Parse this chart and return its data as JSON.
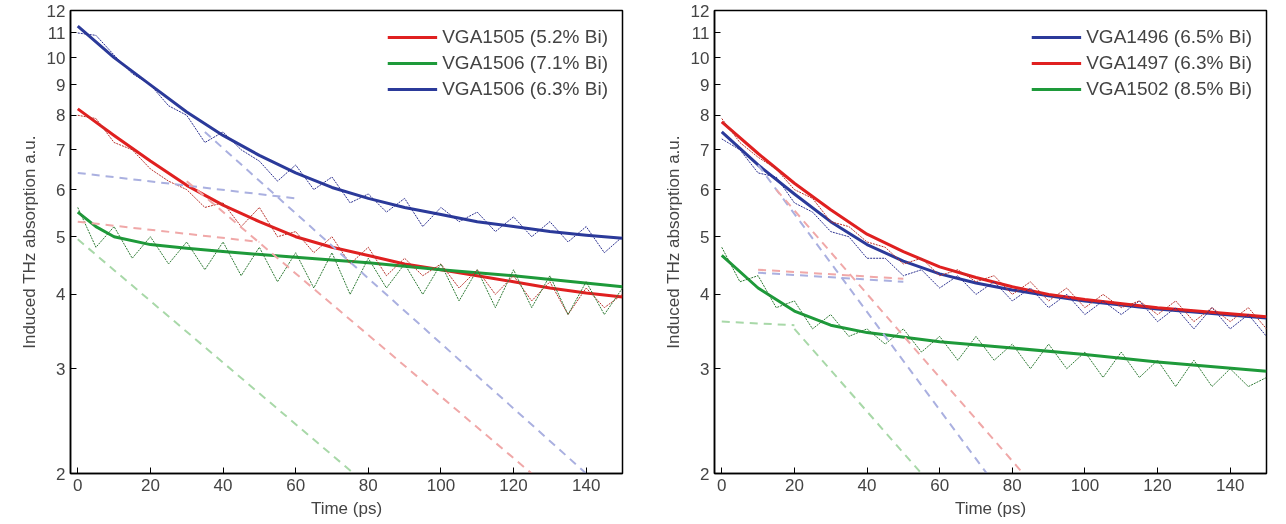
{
  "chart_data": [
    {
      "type": "line",
      "xlabel": "Time (ps)",
      "ylabel": "Induced THz absorption a.u.",
      "log": "y",
      "grid": false,
      "legend": "top right",
      "xlim": [
        -2,
        150
      ],
      "xticks": [
        0,
        20,
        40,
        60,
        80,
        100,
        120,
        140
      ],
      "ylim": [
        2,
        12
      ],
      "yticks": [
        2,
        3,
        4,
        5,
        6,
        7,
        8,
        9,
        10,
        11,
        12
      ],
      "x": [
        0,
        5,
        10,
        15,
        20,
        25,
        30,
        35,
        40,
        45,
        50,
        55,
        60,
        65,
        70,
        75,
        80,
        85,
        90,
        95,
        100,
        105,
        110,
        115,
        120,
        125,
        130,
        135,
        140,
        145,
        150
      ],
      "series": [
        {
          "color": "#2a2f8f",
          "line_style": "dotted",
          "values": [
            11.0,
            10.9,
            10.1,
            9.4,
            9.0,
            8.3,
            8.0,
            7.2,
            7.5,
            7.0,
            6.7,
            6.2,
            6.6,
            6.0,
            6.3,
            5.7,
            5.9,
            5.5,
            5.8,
            5.2,
            5.6,
            5.3,
            5.5,
            5.1,
            5.4,
            5.0,
            5.3,
            4.9,
            5.2,
            4.7,
            5.0
          ]
        },
        {
          "color": "#b8322c",
          "line_style": "dotted",
          "values": [
            8.0,
            7.9,
            7.2,
            7.0,
            6.5,
            6.2,
            6.0,
            5.6,
            5.7,
            5.2,
            5.6,
            5.0,
            5.1,
            4.7,
            5.0,
            4.5,
            4.8,
            4.3,
            4.6,
            4.3,
            4.5,
            4.1,
            4.4,
            4.0,
            4.3,
            3.9,
            4.2,
            3.7,
            4.1,
            3.8,
            4.0
          ]
        },
        {
          "color": "#2e7a34",
          "line_style": "dotted",
          "values": [
            5.6,
            4.8,
            5.2,
            4.6,
            5.0,
            4.5,
            4.9,
            4.4,
            4.9,
            4.3,
            4.8,
            4.2,
            4.7,
            4.1,
            4.7,
            4.0,
            4.6,
            4.1,
            4.5,
            4.0,
            4.5,
            3.9,
            4.4,
            3.8,
            4.4,
            3.8,
            4.3,
            3.7,
            4.2,
            3.7,
            4.1
          ]
        },
        {
          "color": "#aab0e0",
          "line_style": "dashed",
          "x": [
            35,
            140
          ],
          "values": [
            7.5,
            2
          ]
        },
        {
          "color": "#aab0e0",
          "line_style": "dashed",
          "x": [
            0,
            60
          ],
          "values": [
            6.4,
            5.8
          ]
        },
        {
          "color": "#f0a8a8",
          "line_style": "dashed",
          "x": [
            30,
            125
          ],
          "values": [
            6.2,
            2
          ]
        },
        {
          "color": "#f0a8a8",
          "line_style": "dashed",
          "x": [
            0,
            50
          ],
          "values": [
            5.3,
            4.9
          ]
        },
        {
          "color": "#a8d8a8",
          "line_style": "dashed",
          "x": [
            0,
            76
          ],
          "values": [
            4.95,
            2
          ]
        },
        {
          "name": "VGA1505 (5.2% Bi)",
          "color": "#e02020",
          "line_style": "solid",
          "x": [
            0,
            10,
            20,
            30,
            40,
            50,
            60,
            70,
            80,
            90,
            100,
            110,
            120,
            130,
            140,
            150
          ],
          "values": [
            8.2,
            7.4,
            6.7,
            6.1,
            5.65,
            5.3,
            5.0,
            4.8,
            4.65,
            4.5,
            4.4,
            4.3,
            4.2,
            4.1,
            4.02,
            3.96
          ]
        },
        {
          "name": "VGA1506 (7.1% Bi)",
          "color": "#1e9a3a",
          "line_style": "solid",
          "x": [
            0,
            5,
            10,
            20,
            30,
            40,
            60,
            80,
            100,
            120,
            150
          ],
          "values": [
            5.5,
            5.2,
            5.0,
            4.85,
            4.78,
            4.72,
            4.62,
            4.52,
            4.4,
            4.3,
            4.12
          ]
        },
        {
          "name": "VGA1506 (6.3% Bi)",
          "color": "#2b3a9a",
          "line_style": "solid",
          "x": [
            0,
            10,
            20,
            30,
            40,
            50,
            60,
            70,
            80,
            90,
            100,
            110,
            120,
            130,
            140,
            150
          ],
          "values": [
            11.3,
            10.0,
            9.0,
            8.1,
            7.4,
            6.85,
            6.4,
            6.05,
            5.8,
            5.6,
            5.45,
            5.3,
            5.2,
            5.1,
            5.03,
            4.97
          ]
        }
      ]
    },
    {
      "type": "line",
      "xlabel": "Time (ps)",
      "ylabel": "Induced THz absorption a.u.",
      "log": "y",
      "grid": false,
      "legend": "top right",
      "xlim": [
        -2,
        150
      ],
      "xticks": [
        0,
        20,
        40,
        60,
        80,
        100,
        120,
        140
      ],
      "ylim": [
        2,
        12
      ],
      "yticks": [
        2,
        3,
        4,
        5,
        6,
        7,
        8,
        9,
        10,
        11,
        12
      ],
      "x": [
        0,
        5,
        10,
        15,
        20,
        25,
        30,
        35,
        40,
        45,
        50,
        55,
        60,
        65,
        70,
        75,
        80,
        85,
        90,
        95,
        100,
        105,
        110,
        115,
        120,
        125,
        130,
        135,
        140,
        145,
        150
      ],
      "series": [
        {
          "color": "#2a2f8f",
          "line_style": "dotted",
          "values": [
            7.3,
            7.0,
            6.4,
            6.3,
            5.7,
            5.5,
            5.1,
            5.0,
            4.6,
            4.6,
            4.3,
            4.4,
            4.1,
            4.3,
            4.0,
            4.2,
            3.9,
            4.1,
            3.8,
            4.0,
            3.7,
            3.9,
            3.7,
            3.9,
            3.6,
            3.8,
            3.5,
            3.8,
            3.5,
            3.7,
            3.4
          ]
        },
        {
          "color": "#b8322c",
          "line_style": "dotted",
          "values": [
            7.9,
            7.2,
            6.8,
            6.5,
            6.0,
            5.8,
            5.3,
            5.2,
            4.9,
            4.8,
            4.5,
            4.6,
            4.3,
            4.4,
            4.2,
            4.3,
            4.0,
            4.2,
            3.9,
            4.1,
            3.8,
            4.0,
            3.8,
            3.9,
            3.7,
            3.9,
            3.6,
            3.8,
            3.6,
            3.8,
            3.5
          ]
        },
        {
          "color": "#2e7a34",
          "line_style": "dotted",
          "values": [
            4.8,
            4.2,
            4.3,
            3.8,
            3.9,
            3.5,
            3.7,
            3.4,
            3.5,
            3.3,
            3.5,
            3.2,
            3.4,
            3.1,
            3.4,
            3.1,
            3.3,
            3.0,
            3.3,
            3.0,
            3.2,
            2.9,
            3.2,
            2.9,
            3.1,
            2.8,
            3.1,
            2.8,
            3.0,
            2.8,
            2.9
          ]
        },
        {
          "color": "#aab0e0",
          "line_style": "dashed",
          "x": [
            10,
            73
          ],
          "values": [
            6.6,
            2
          ]
        },
        {
          "color": "#aab0e0",
          "line_style": "dashed",
          "x": [
            10,
            50
          ],
          "values": [
            4.35,
            4.2
          ]
        },
        {
          "color": "#f0a8a8",
          "line_style": "dashed",
          "x": [
            15,
            83
          ],
          "values": [
            6.0,
            2
          ]
        },
        {
          "color": "#f0a8a8",
          "line_style": "dashed",
          "x": [
            10,
            50
          ],
          "values": [
            4.4,
            4.25
          ]
        },
        {
          "color": "#a8d8a8",
          "line_style": "dashed",
          "x": [
            20,
            55
          ],
          "values": [
            3.5,
            2
          ]
        },
        {
          "color": "#a8d8a8",
          "line_style": "dashed",
          "x": [
            0,
            20
          ],
          "values": [
            3.6,
            3.55
          ]
        },
        {
          "name": "VGA1496 (6.5% Bi)",
          "color": "#2b3a9a",
          "line_style": "solid",
          "x": [
            0,
            10,
            20,
            30,
            40,
            50,
            60,
            70,
            80,
            90,
            100,
            120,
            150
          ],
          "values": [
            7.5,
            6.6,
            5.9,
            5.3,
            4.85,
            4.55,
            4.33,
            4.18,
            4.07,
            3.98,
            3.9,
            3.78,
            3.65
          ]
        },
        {
          "name": "VGA1497 (6.3% Bi)",
          "color": "#e02020",
          "line_style": "solid",
          "x": [
            0,
            10,
            20,
            30,
            40,
            50,
            60,
            70,
            80,
            90,
            100,
            120,
            150
          ],
          "values": [
            7.8,
            6.9,
            6.15,
            5.55,
            5.05,
            4.72,
            4.45,
            4.27,
            4.12,
            4.0,
            3.92,
            3.8,
            3.67
          ]
        },
        {
          "name": "VGA1502 (8.5% Bi)",
          "color": "#1e9a3a",
          "line_style": "solid",
          "x": [
            0,
            10,
            20,
            30,
            40,
            60,
            80,
            100,
            120,
            150
          ],
          "values": [
            4.65,
            4.1,
            3.75,
            3.55,
            3.45,
            3.33,
            3.25,
            3.17,
            3.08,
            2.97
          ]
        }
      ]
    }
  ]
}
